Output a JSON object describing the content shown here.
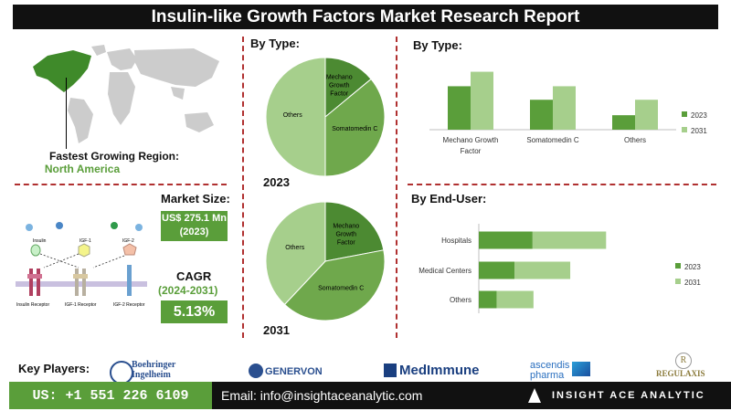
{
  "header": {
    "title": "Insulin-like Growth Factors Market Research Report"
  },
  "region": {
    "label": "Fastest Growing Region:",
    "value": "North America"
  },
  "market": {
    "size_label": "Market Size:",
    "size_value": "US$ 275.1 Mn (2023)",
    "cagr_label": "CAGR",
    "cagr_period": "(2024-2031)",
    "cagr_value": "5.13%"
  },
  "diagram": {
    "ligands": [
      "Insulin",
      "IGF-1",
      "IGF-2"
    ],
    "receptors": [
      "Insulin Receptor",
      "IGF-1 Receptor",
      "IGF-2 Receptor"
    ]
  },
  "pie_section": {
    "title": "By Type:",
    "year_2023": "2023",
    "year_2031": "2031"
  },
  "bar_section": {
    "title": "By Type:"
  },
  "enduser_section": {
    "title": "By End-User:"
  },
  "key_players": {
    "label": "Key Players:",
    "players": [
      "Boehringer Ingelheim",
      "GENERVON",
      "MedImmune",
      "ascendis pharma",
      "REGULAXIS"
    ]
  },
  "footer": {
    "phone": "US: +1 551 226 6109",
    "email": "Email: info@insightaceanalytic.com",
    "brand": "INSIGHT ACE ANALYTIC"
  },
  "colors": {
    "dark_green": "#5a9e3a",
    "light_green": "#a6cf8c",
    "pie_mid": "#6fa84c",
    "pie_dark": "#4c8a32"
  },
  "chart_data": [
    {
      "type": "pie",
      "title": "2023",
      "categories": [
        "Mechano Growth Factor",
        "Somatomedin C",
        "Others"
      ],
      "values": [
        14,
        36,
        50
      ]
    },
    {
      "type": "pie",
      "title": "2031",
      "categories": [
        "Mechano Growth Factor",
        "Somatomedin C",
        "Others"
      ],
      "values": [
        22,
        40,
        38
      ]
    },
    {
      "type": "bar",
      "categories": [
        "Mechano Growth Factor",
        "Somatomedin C",
        "Others"
      ],
      "series": [
        {
          "name": "2023",
          "values": [
            45,
            31,
            15
          ]
        },
        {
          "name": "2031",
          "values": [
            60,
            45,
            31
          ]
        }
      ],
      "ylim": [
        0,
        70
      ],
      "grid": false,
      "legend": "right"
    },
    {
      "type": "bar",
      "orientation": "horizontal",
      "stacked": true,
      "categories": [
        "Hospitals",
        "Medical Centers",
        "Others"
      ],
      "series": [
        {
          "name": "2023",
          "values": [
            60,
            40,
            20
          ]
        },
        {
          "name": "2031",
          "values": [
            82,
            62,
            41
          ]
        }
      ],
      "xlim": [
        0,
        210
      ],
      "grid": false,
      "legend": "right"
    }
  ]
}
